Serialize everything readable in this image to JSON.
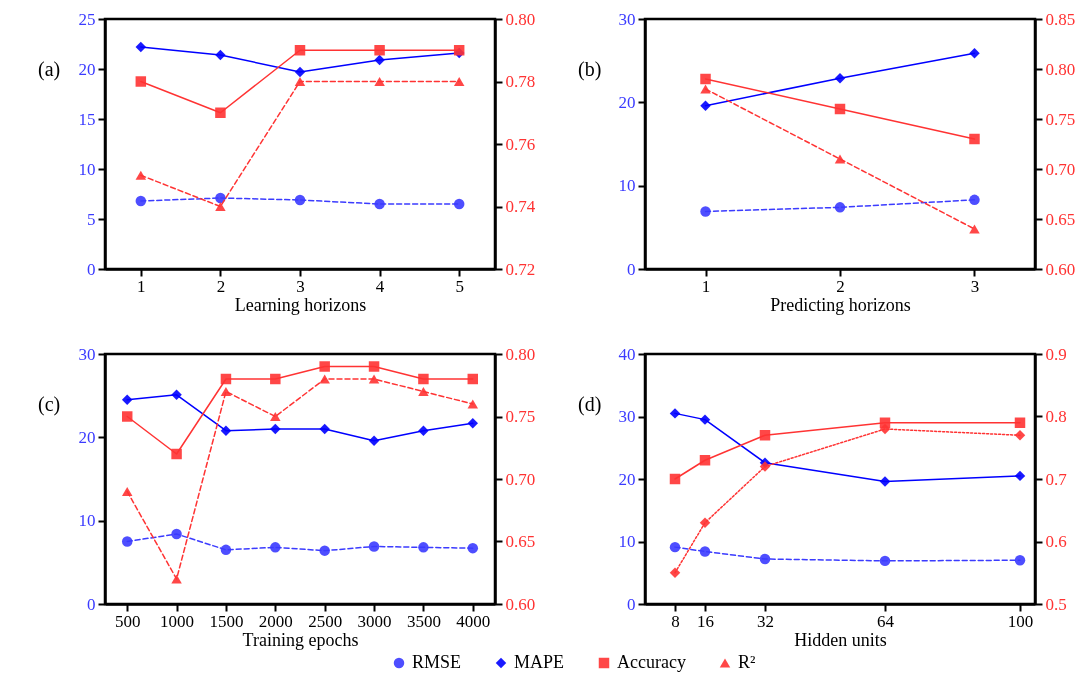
{
  "chart_data": [
    {
      "type": "line",
      "title": "(a)",
      "xlabel": "Learning horizons",
      "categories": [
        "1",
        "2",
        "3",
        "4",
        "5"
      ],
      "ylim": [
        0,
        25
      ],
      "yticks": [
        0,
        5,
        10,
        15,
        20,
        25
      ],
      "y2lim": [
        0.72,
        0.8
      ],
      "y2ticks": [
        0.72,
        0.74,
        0.76,
        0.78,
        {
          "value": 0.8,
          "label": "0.80"
        }
      ],
      "series": [
        {
          "color": "#3b3bff",
          "marker": "circle",
          "line_style": "dashed",
          "values": [
            6.8,
            7.1,
            6.9,
            6.5,
            6.5
          ]
        },
        {
          "color": "#0000ff",
          "marker": "diamond",
          "line_style": "solid",
          "values": [
            22.2,
            21.4,
            19.7,
            20.9,
            21.6
          ]
        },
        {
          "color": "#ff3333",
          "marker": "square",
          "line_style": "solid",
          "axis": "y2",
          "values": [
            0.78,
            0.77,
            0.79,
            0.79,
            0.79
          ]
        },
        {
          "color": "#ff3333",
          "marker": "triangle",
          "line_style": "dashed",
          "axis": "y2",
          "values": [
            0.75,
            0.74,
            0.78,
            0.78,
            0.78
          ]
        }
      ]
    },
    {
      "type": "line",
      "title": "(b)",
      "xlabel": "Predicting horizons",
      "categories": [
        "1",
        "2",
        "3"
      ],
      "ylim": [
        0,
        30
      ],
      "yticks": [
        0,
        10,
        20,
        30
      ],
      "y2lim": [
        0.6,
        0.85
      ],
      "y2ticks": [
        {
          "value": 0.6,
          "label": "0.60"
        },
        0.65,
        {
          "value": 0.7,
          "label": "0.70"
        },
        0.75,
        {
          "value": 0.8,
          "label": "0.80"
        },
        0.85
      ],
      "series": [
        {
          "color": "#3b3bff",
          "marker": "circle",
          "line_style": "dashed",
          "values": [
            6.9,
            7.4,
            8.3
          ]
        },
        {
          "color": "#0000ff",
          "marker": "diamond",
          "line_style": "solid",
          "values": [
            19.6,
            22.9,
            25.9
          ]
        },
        {
          "color": "#ff3333",
          "marker": "square",
          "line_style": "solid",
          "axis": "y2",
          "values": [
            0.79,
            0.76,
            0.73
          ]
        },
        {
          "color": "#ff3333",
          "marker": "triangle",
          "line_style": "dashed",
          "axis": "y2",
          "values": [
            0.78,
            0.71,
            0.64
          ]
        }
      ]
    },
    {
      "type": "line",
      "title": "(c)",
      "xlabel": "Training epochs",
      "legend": "bottom",
      "categories": [
        "500",
        "1000",
        "1500",
        "2000",
        "2500",
        "3000",
        "3500",
        "4000"
      ],
      "ylim": [
        0,
        30
      ],
      "yticks": [
        0,
        10,
        20,
        30
      ],
      "y2lim": [
        0.6,
        0.8
      ],
      "y2ticks": [
        {
          "value": 0.6,
          "label": "0.60"
        },
        0.65,
        {
          "value": 0.7,
          "label": "0.70"
        },
        0.75,
        {
          "value": 0.8,
          "label": "0.80"
        }
      ],
      "series": [
        {
          "name": "RMSE",
          "color": "#3b3bff",
          "marker": "circle",
          "line_style": "dashed",
          "values": [
            7.5,
            8.4,
            6.5,
            6.8,
            6.4,
            6.9,
            6.8,
            6.7
          ]
        },
        {
          "name": "MAPE",
          "color": "#0000ff",
          "marker": "diamond",
          "line_style": "solid",
          "values": [
            24.5,
            25.1,
            20.8,
            21.0,
            21.0,
            19.6,
            20.8,
            21.7
          ]
        },
        {
          "name": "Accuracy",
          "color": "#ff3333",
          "marker": "square",
          "line_style": "solid",
          "axis": "y2",
          "values": [
            0.75,
            0.72,
            0.78,
            0.78,
            0.79,
            0.79,
            0.78,
            0.78
          ]
        },
        {
          "name": "R²",
          "color": "#ff3333",
          "marker": "triangle",
          "line_style": "dashed",
          "axis": "y2",
          "values": [
            0.69,
            0.62,
            0.77,
            0.75,
            0.78,
            0.78,
            0.77,
            0.76
          ]
        }
      ]
    },
    {
      "type": "line",
      "title": "(d)",
      "xlabel": "Hidden units",
      "x": [
        8,
        16,
        32,
        64,
        100
      ],
      "xlim": [
        0,
        104
      ],
      "xticks": [
        8,
        16,
        32,
        64,
        100
      ],
      "ylim": [
        0,
        40
      ],
      "yticks": [
        0,
        10,
        20,
        30,
        40
      ],
      "y2lim": [
        0.5,
        0.9
      ],
      "y2ticks": [
        0.5,
        0.6,
        0.7,
        0.8,
        0.9
      ],
      "series": [
        {
          "color": "#3b3bff",
          "marker": "circle",
          "line_style": "dashed",
          "values": [
            9.1,
            8.4,
            7.2,
            6.9,
            7.0
          ]
        },
        {
          "color": "#0000ff",
          "marker": "diamond",
          "line_style": "solid",
          "values": [
            30.5,
            29.5,
            22.6,
            19.6,
            20.5
          ]
        },
        {
          "color": "#ff3333",
          "marker": "square",
          "line_style": "solid",
          "axis": "y2",
          "values": [
            0.7,
            0.73,
            0.77,
            0.79,
            0.79
          ]
        },
        {
          "color": "#ff3333",
          "marker": "diamond",
          "line_style": "dotted",
          "axis": "y2",
          "values": [
            0.55,
            0.63,
            0.72,
            0.78,
            0.77
          ]
        }
      ]
    }
  ]
}
